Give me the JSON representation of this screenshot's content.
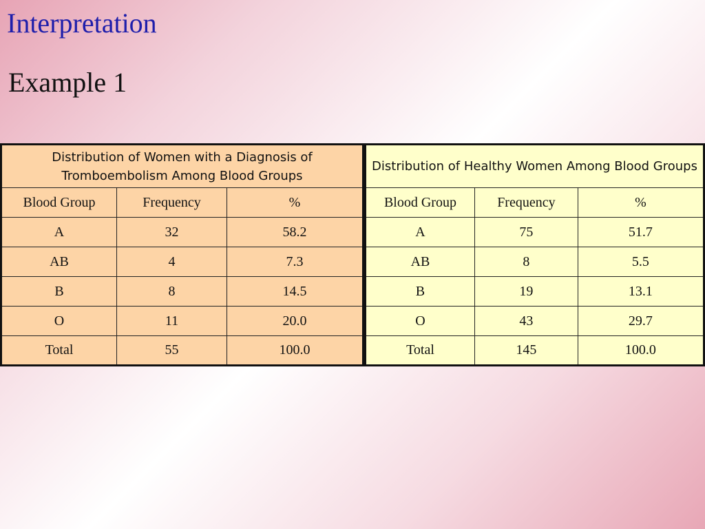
{
  "slide": {
    "title": "Interpretation",
    "subtitle": "Example 1"
  },
  "colors": {
    "title": "#1e1eab",
    "left_table_bg": "#fdd4a6",
    "right_table_bg": "#ffffcb"
  },
  "tables": [
    {
      "caption": "Distribution of Women with a Diagnosis of Tromboembolism Among Blood Groups",
      "columns": [
        "Blood Group",
        "Frequency",
        "%"
      ],
      "rows": [
        [
          "A",
          "32",
          "58.2"
        ],
        [
          "AB",
          "4",
          "7.3"
        ],
        [
          "B",
          "8",
          "14.5"
        ],
        [
          "O",
          "11",
          "20.0"
        ],
        [
          "Total",
          "55",
          "100.0"
        ]
      ]
    },
    {
      "caption": "Distribution of Healthy Women  Among Blood Groups",
      "columns": [
        "Blood Group",
        "Frequency",
        "%"
      ],
      "rows": [
        [
          "A",
          "75",
          "51.7"
        ],
        [
          "AB",
          "8",
          "5.5"
        ],
        [
          "B",
          "19",
          "13.1"
        ],
        [
          "O",
          "43",
          "29.7"
        ],
        [
          "Total",
          "145",
          "100.0"
        ]
      ]
    }
  ]
}
